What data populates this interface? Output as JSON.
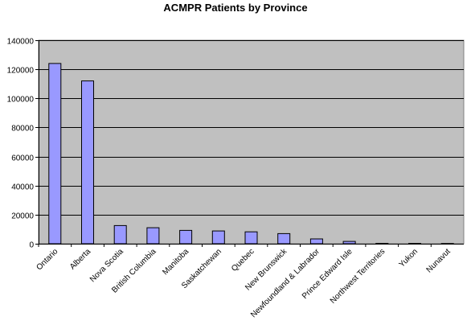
{
  "chart_data": {
    "type": "bar",
    "title": "ACMPR Patients by Province",
    "xlabel": "",
    "ylabel": "",
    "categories": [
      "Ontario",
      "Alberta",
      "Nova Scotia",
      "British Columbia",
      "Manitoba",
      "Saskatchewan",
      "Quebec",
      "New Brunswick",
      "Newfoundland & Labrador",
      "Prince Edward Isle",
      "Northwest Territories",
      "Yukon",
      "Nunavut"
    ],
    "values": [
      124000,
      112000,
      12500,
      11000,
      9200,
      8800,
      8200,
      7000,
      3300,
      1600,
      300,
      200,
      150
    ],
    "ylim": [
      0,
      140000
    ],
    "yticks": [
      0,
      20000,
      40000,
      60000,
      80000,
      100000,
      120000,
      140000
    ],
    "grid": true,
    "legend": "none",
    "colors": {
      "plot_background": "#c0c0c0",
      "bar_fill": "#9999ff",
      "bar_stroke": "#000000",
      "gridline": "#000000"
    }
  }
}
